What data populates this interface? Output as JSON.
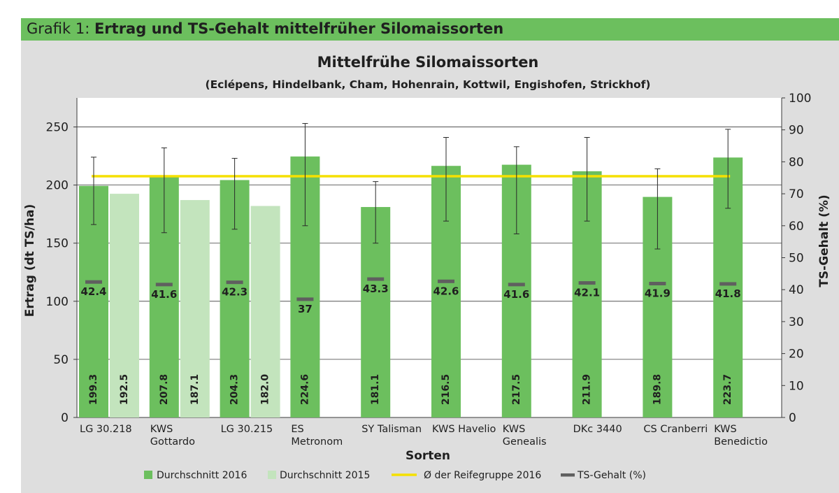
{
  "header": {
    "prefix": "Grafik 1: ",
    "title": "Ertrag und TS-Gehalt mittelfrüher Silomaissorten"
  },
  "colors": {
    "header_bg": "#6cbf5e",
    "panel_bg": "#dedede",
    "series_2016": "#6cbf5e",
    "series_2015": "#c3e4bd",
    "group_avg": "#f5e000",
    "ts_marker": "#5f5f5f"
  },
  "chart_data": {
    "type": "bar",
    "title": "Mittelfrühe Silomaissorten",
    "subtitle": "(Eclépens, Hindelbank, Cham, Hohenrain, Kottwil, Engishofen, Strickhof)",
    "xlabel": "Sorten",
    "ylabel": "Ertrag (dt TS/ha)",
    "y2label": "TS-Gehalt (%)",
    "ylim": [
      0,
      275
    ],
    "y_ticks": [
      0,
      50,
      100,
      150,
      200,
      250
    ],
    "y2lim": [
      0,
      100
    ],
    "y2_ticks": [
      0,
      10,
      20,
      30,
      40,
      50,
      60,
      70,
      80,
      90,
      100
    ],
    "gridlines": true,
    "categories": [
      [
        "LG 30.218"
      ],
      [
        "KWS",
        "Gottardo"
      ],
      [
        "LG 30.215"
      ],
      [
        "ES",
        "Metronom"
      ],
      [
        "SY Talisman"
      ],
      [
        "KWS Havelio"
      ],
      [
        "KWS",
        "Genealis"
      ],
      [
        "DKc 3440"
      ],
      [
        "CS Cranberri"
      ],
      [
        "KWS",
        "Benedictio"
      ]
    ],
    "series": [
      {
        "name": "Durchschnitt 2016",
        "values": [
          199.3,
          207.8,
          204.3,
          224.6,
          181.1,
          216.5,
          217.5,
          211.9,
          189.8,
          223.7
        ],
        "labels": [
          "199.3",
          "207.8",
          "204.3",
          "224.6",
          "181.1",
          "216.5",
          "217.5",
          "211.9",
          "189.8",
          "223.7"
        ],
        "error_low": [
          166,
          159,
          162,
          165,
          150,
          169,
          158,
          169,
          145,
          180
        ],
        "error_high": [
          224,
          232,
          223,
          253,
          203,
          241,
          233,
          241,
          214,
          248
        ]
      },
      {
        "name": "Durchschnitt 2015",
        "values": [
          192.5,
          187.1,
          182.0,
          null,
          null,
          null,
          null,
          null,
          null,
          null
        ],
        "labels": [
          "192.5",
          "187.1",
          "182.0",
          null,
          null,
          null,
          null,
          null,
          null,
          null
        ]
      },
      {
        "name": "TS-Gehalt (%)",
        "axis": "right",
        "values": [
          42.4,
          41.6,
          42.3,
          37,
          43.3,
          42.6,
          41.6,
          42.1,
          41.9,
          41.8
        ],
        "labels": [
          "42.4",
          "41.6",
          "42.3",
          "37",
          "43.3",
          "42.6",
          "41.6",
          "42.1",
          "41.9",
          "41.8"
        ]
      },
      {
        "name": "Ø der Reifegruppe 2016",
        "axis": "right",
        "value": 75.5
      }
    ],
    "legend": {
      "position": "bottom",
      "items": [
        "Durchschnitt 2016",
        "Durchschnitt 2015",
        "Ø der Reifegruppe 2016",
        "TS-Gehalt (%)"
      ]
    }
  }
}
